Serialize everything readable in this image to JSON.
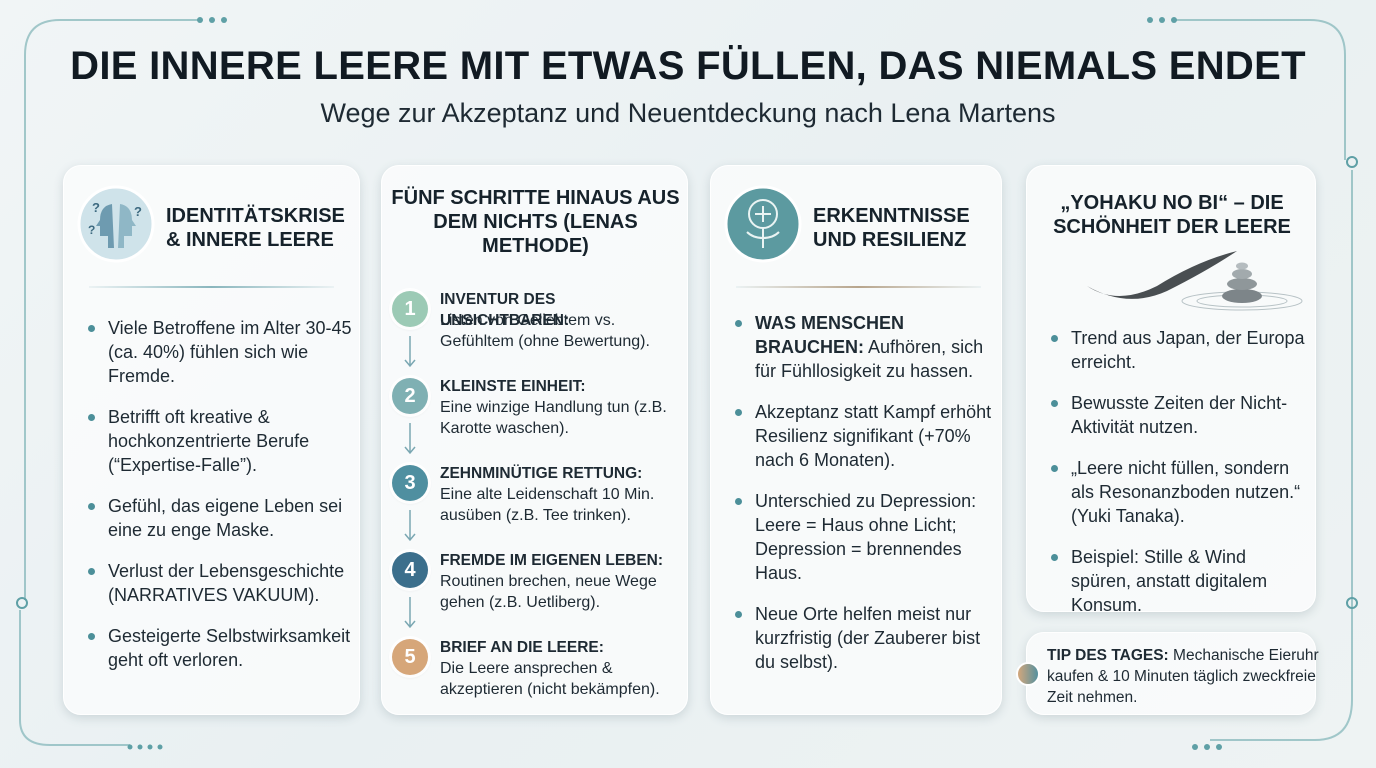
{
  "header": {
    "title": "DIE INNERE LEERE MIT ETWAS FÜLLEN, DAS NIEMALS ENDET",
    "subtitle": "Wege zur Akzeptanz und Neuentdeckung nach Lena Martens"
  },
  "cards": [
    {
      "title": "IDENTITÄTSKRISE & INNERE LEERE",
      "bullets": [
        {
          "text": "Viele Betroffene im Alter 30-45 (ca. 40%) fühlen sich wie Fremde."
        },
        {
          "text": "Betrifft oft kreative & hochkonzentrierte Berufe (“Expertise-Falle”)."
        },
        {
          "text": "Gefühl, das eigene Leben sei eine zu enge Maske."
        },
        {
          "text": "Verlust der Lebensgeschichte (NARRATIVES VAKUUM)."
        },
        {
          "text": "Gesteigerte Selbstwirksamkeit geht oft verloren."
        }
      ]
    },
    {
      "title": "FÜNF SCHRITTE HINAUS AUS DEM NICHTS (LENAS METHODE)",
      "steps": [
        {
          "number": "1",
          "heading": "INVENTUR DES UNSICHTBAREN:",
          "text": "Listen von Geliebtem vs. Gefühltem (ohne Bewertung)."
        },
        {
          "number": "2",
          "heading": "KLEINSTE EINHEIT:",
          "text": "Eine winzige Handlung tun (z.B. Karotte waschen)."
        },
        {
          "number": "3",
          "heading": "ZEHNMINÜTIGE RETTUNG:",
          "text": "Eine alte Leidenschaft 10 Min. ausüben (z.B. Tee trinken)."
        },
        {
          "number": "4",
          "heading": "FREMDE IM EIGENEN LEBEN:",
          "text": "Routinen brechen, neue Wege gehen (z.B. Uetliberg)."
        },
        {
          "number": "5",
          "heading": "BRIEF AN DIE LEERE:",
          "text": "Die Leere ansprechen & akzeptieren (nicht bekämpfen)."
        }
      ]
    },
    {
      "title": "ERKENNTNISSE UND RESILIENZ",
      "bullets": [
        {
          "lead": "WAS MENSCHEN BRAUCHEN:",
          "text": "Aufhören, sich für Fühllosigkeit zu hassen."
        },
        {
          "text": "Akzeptanz statt Kampf erhöht Resilienz signifikant (+70% nach 6 Monaten)."
        },
        {
          "text": "Unterschied zu Depression: Leere = Haus ohne Licht; Depression = brennendes Haus."
        },
        {
          "text": "Neue Orte helfen meist nur kurzfristig (der Zauberer bist du selbst)."
        }
      ]
    },
    {
      "title": "„YOHAKU NO BI“ – DIE SCHÖNHEIT DER LEERE",
      "bullets": [
        {
          "text": "Trend aus Japan, der Europa erreicht."
        },
        {
          "text": "Bewusste Zeiten der Nicht-Aktivität nutzen."
        },
        {
          "text": "„Leere nicht füllen, sondern als Resonanzboden nutzen.“ (Yuki Tanaka)."
        },
        {
          "text": "Beispiel: Stille & Wind spüren, anstatt digitalem Konsum."
        }
      ]
    }
  ],
  "tip": {
    "label": "TIP DES TAGES:",
    "text": "Mechanische Eieruhr kaufen & 10 Minuten täglich zweckfreie Zeit nehmen."
  }
}
